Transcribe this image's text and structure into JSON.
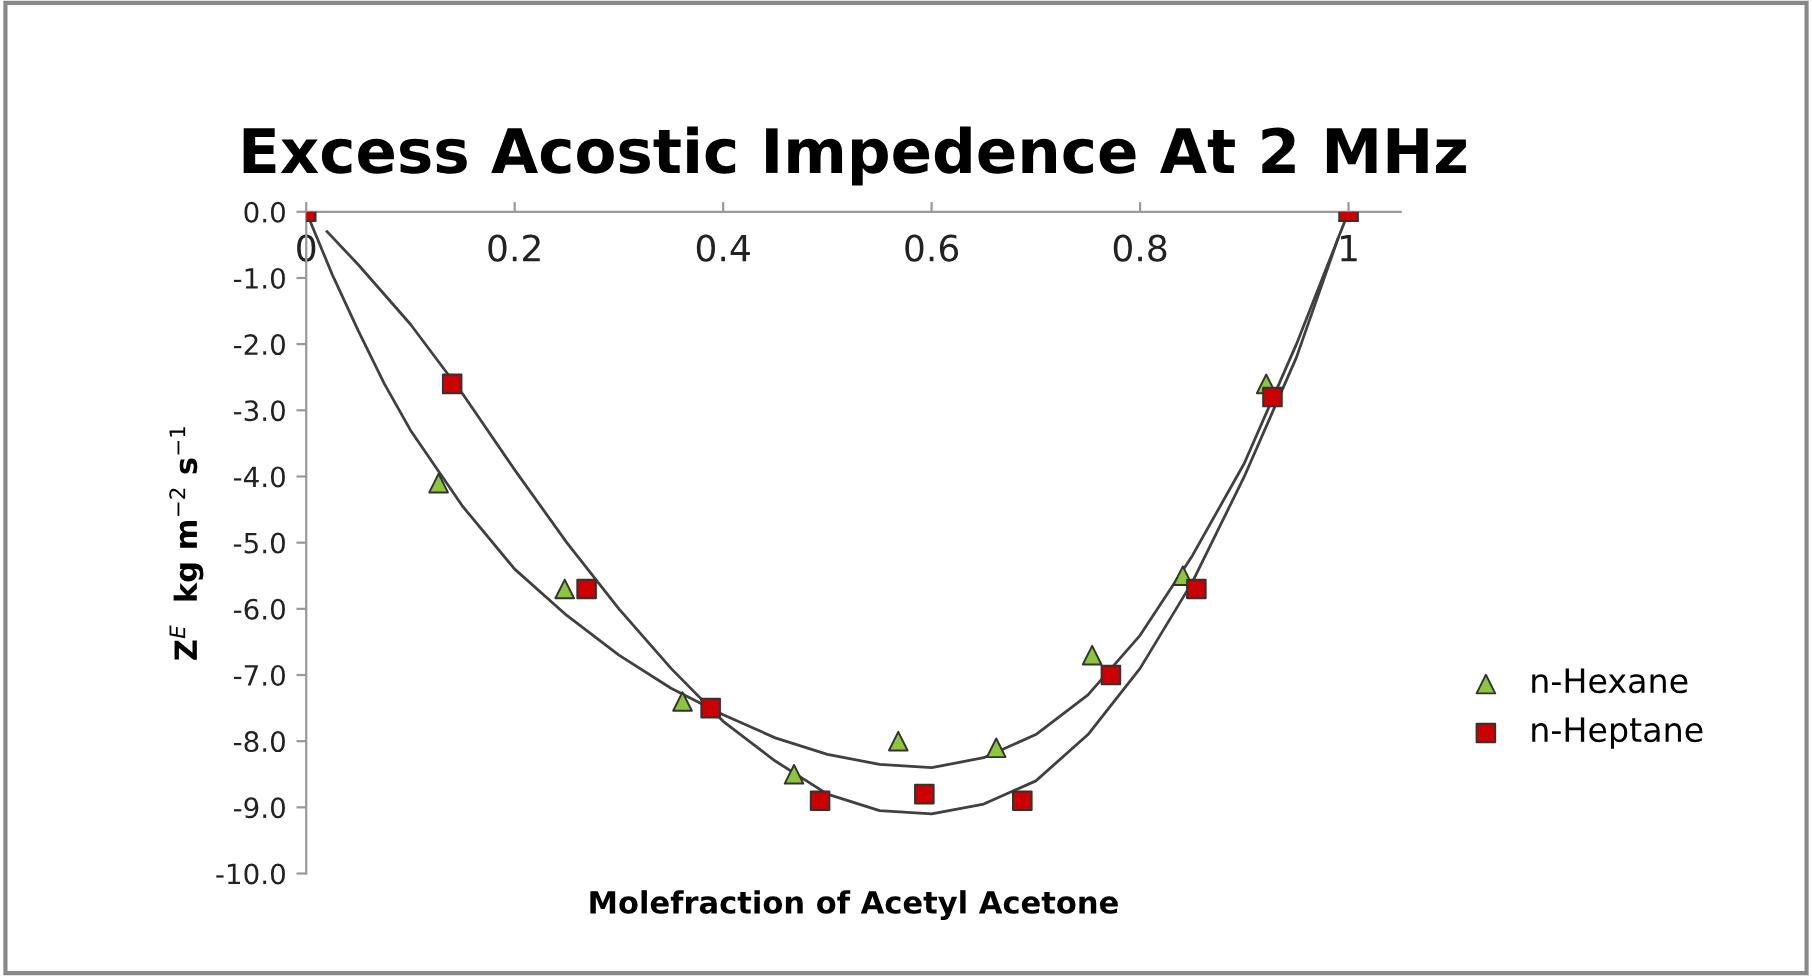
{
  "chart_data": {
    "type": "scatter",
    "title": "Excess Acostic Impedence At 2 MHz",
    "xlabel": "Molefraction of Acetyl Acetone",
    "ylabel": "Z$^{E}$  kg m$^{−2}$ s$^{−1}$",
    "series": [
      {
        "name": "n-Hexane",
        "color": "#8cc63f",
        "marker": "triangle",
        "x": [
          0,
          0.127,
          0.248,
          0.361,
          0.468,
          0.568,
          0.662,
          0.754,
          0.841,
          0.921,
          1
        ],
        "values": [
          0,
          -4.1,
          -5.7,
          -7.4,
          -8.5,
          -8.0,
          -8.1,
          -6.7,
          -5.5,
          -2.6,
          0
        ]
      },
      {
        "name": "n-Heptane",
        "color": "#cc0000",
        "marker": "square",
        "x": [
          0,
          0.14,
          0.269,
          0.388,
          0.493,
          0.593,
          0.687,
          0.772,
          0.854,
          0.927,
          1
        ],
        "values": [
          0,
          -2.6,
          -5.7,
          -7.5,
          -8.9,
          -8.8,
          -8.9,
          -7.0,
          -5.7,
          -2.8,
          0
        ]
      },
      {
        "type": "line",
        "color": "#404040",
        "x": [
          0,
          0.025,
          0.05,
          0.075,
          0.1,
          0.15,
          0.2,
          0.25,
          0.3,
          0.35,
          0.4,
          0.45,
          0.5,
          0.55,
          0.6,
          0.65,
          0.7,
          0.75,
          0.8,
          0.85,
          0.9,
          0.95,
          1
        ],
        "values": [
          0,
          -0.95,
          -1.8,
          -2.6,
          -3.3,
          -4.45,
          -5.4,
          -6.1,
          -6.7,
          -7.2,
          -7.6,
          -7.95,
          -8.2,
          -8.35,
          -8.4,
          -8.25,
          -7.9,
          -7.3,
          -6.4,
          -5.2,
          -3.8,
          -2.0,
          0
        ]
      },
      {
        "type": "line",
        "color": "#404040",
        "x": [
          0.02,
          0.05,
          0.1,
          0.15,
          0.2,
          0.25,
          0.3,
          0.35,
          0.4,
          0.45,
          0.5,
          0.55,
          0.6,
          0.65,
          0.7,
          0.75,
          0.8,
          0.85,
          0.9,
          0.95,
          0.99
        ],
        "values": [
          -0.3,
          -0.8,
          -1.7,
          -2.75,
          -3.9,
          -5.0,
          -6.0,
          -6.9,
          -7.7,
          -8.3,
          -8.8,
          -9.05,
          -9.1,
          -8.95,
          -8.6,
          -7.9,
          -6.9,
          -5.6,
          -4.0,
          -2.2,
          -0.4
        ]
      }
    ],
    "xlim": [
      0,
      1.05
    ],
    "xticks": [
      0,
      0.2,
      0.4,
      0.6,
      0.8,
      1
    ],
    "ylim": [
      -10,
      0
    ],
    "yticks": [
      {
        "value": 0,
        "label": "0.0"
      },
      {
        "value": -1,
        "label": "-1.0"
      },
      {
        "value": -2,
        "label": "-2.0"
      },
      {
        "value": -3,
        "label": "-3.0"
      },
      {
        "value": -4,
        "label": "-4.0"
      },
      {
        "value": -5,
        "label": "-5.0"
      },
      {
        "value": -6,
        "label": "-6.0"
      },
      {
        "value": -7,
        "label": "-7.0"
      },
      {
        "value": -8,
        "label": "-8.0"
      },
      {
        "value": -9,
        "label": "-9.0"
      },
      {
        "value": -10,
        "label": "-10.0"
      }
    ],
    "grid": false,
    "legend": "right"
  }
}
